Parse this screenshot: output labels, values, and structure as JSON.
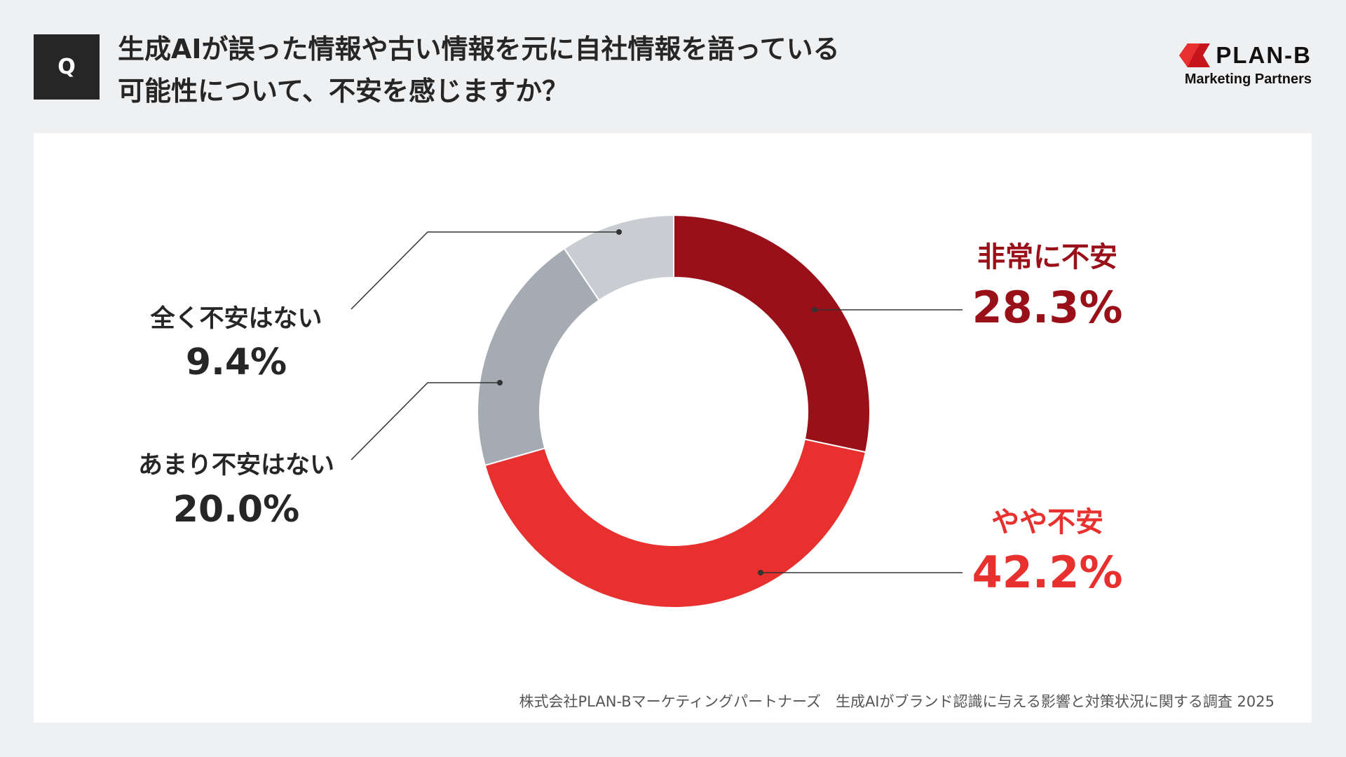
{
  "header": {
    "q_label": "Q",
    "title_line1": "生成AIが誤った情報や古い情報を元に自社情報を語っている",
    "title_line2": "可能性について、不安を感じますか？"
  },
  "logo": {
    "name": "PLAN-B",
    "sub": "Marketing Partners"
  },
  "chart_data": {
    "type": "pie",
    "variant": "donut",
    "start": "top, clockwise",
    "slices": [
      {
        "label": "非常に不安",
        "value": 28.3,
        "display": "28.3%",
        "color": "#9a1019"
      },
      {
        "label": "やや不安",
        "value": 42.2,
        "display": "42.2%",
        "color": "#e8302e"
      },
      {
        "label": "あまり不安はない",
        "value": 20.0,
        "display": "20.0%",
        "color": "#a5abb3"
      },
      {
        "label": "全く不安はない",
        "value": 9.4,
        "display": "9.4%",
        "color": "#c9ccd0"
      }
    ]
  },
  "footer": "株式会社PLAN-Bマーケティングパートナーズ　生成AIがブランド認識に与える影響と対策状況に関する調査 2025"
}
